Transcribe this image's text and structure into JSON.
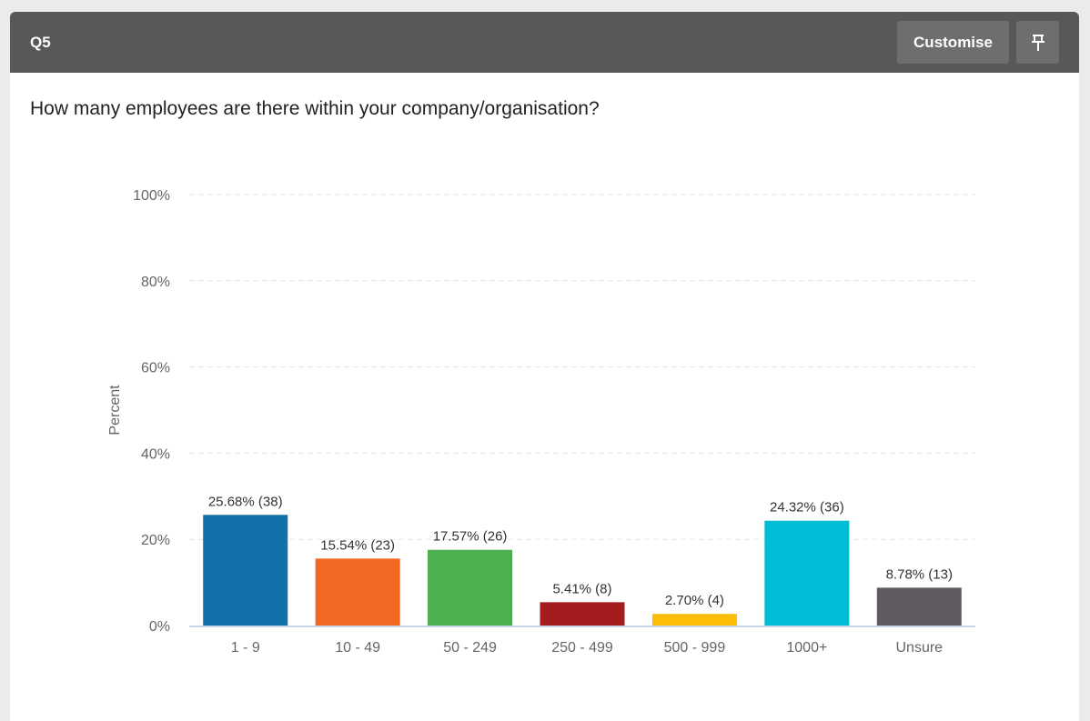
{
  "header": {
    "question_id": "Q5",
    "customise_label": "Customise",
    "pin_icon": "pin-icon"
  },
  "question": "How many employees are there within your company/organisation?",
  "chart_data": {
    "type": "bar",
    "title": "",
    "xlabel": "",
    "ylabel": "Percent",
    "ylim": [
      0,
      100
    ],
    "yticks": [
      "0%",
      "20%",
      "40%",
      "60%",
      "80%",
      "100%"
    ],
    "grid": true,
    "categories": [
      "1 - 9",
      "10 - 49",
      "50 - 249",
      "250 - 499",
      "500 - 999",
      "1000+",
      "Unsure"
    ],
    "values": [
      25.68,
      15.54,
      17.57,
      5.41,
      2.7,
      24.32,
      8.78
    ],
    "counts": [
      38,
      23,
      26,
      8,
      4,
      36,
      13
    ],
    "labels": [
      "25.68% (38)",
      "15.54% (23)",
      "17.57% (26)",
      "5.41% (8)",
      "2.70% (4)",
      "24.32% (36)",
      "8.78% (13)"
    ],
    "colors": [
      "#1470a8",
      "#f26722",
      "#4caf50",
      "#a51c1e",
      "#fbbd08",
      "#00bcd4",
      "#605a60"
    ]
  }
}
